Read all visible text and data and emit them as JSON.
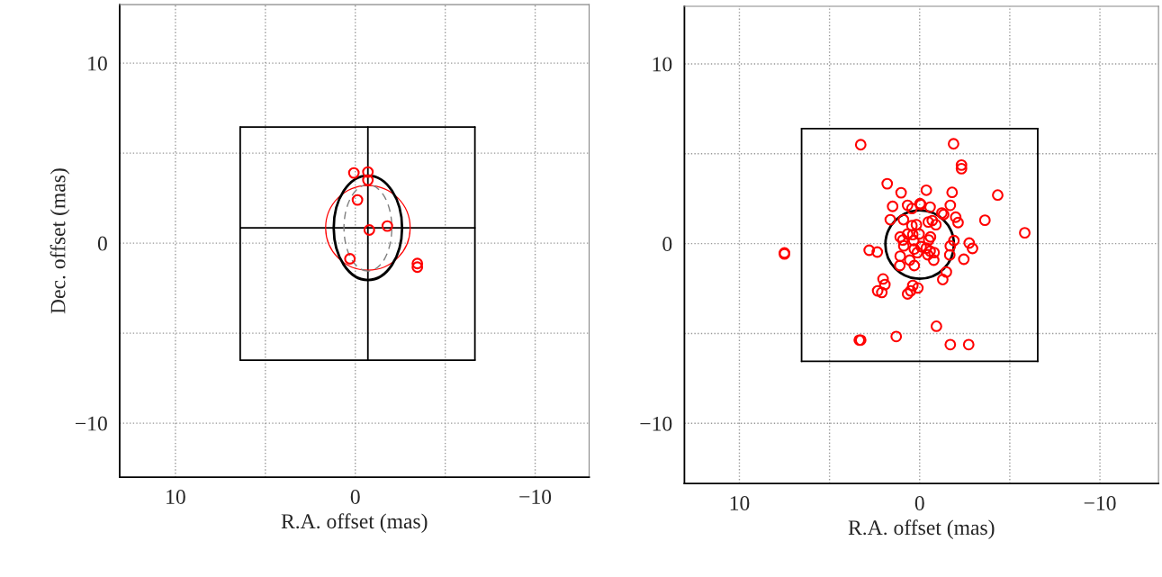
{
  "chart_data": [
    {
      "type": "scatter",
      "xlabel": "R.A. offset (mas)",
      "ylabel": "Dec. offset (mas)",
      "xlim": [
        13.1,
        -13
      ],
      "ylim": [
        -13,
        13.25
      ],
      "xticks": [
        10,
        {
          "value": 5,
          "label": null
        },
        0,
        {
          "value": -5,
          "label": null
        },
        {
          "value": -10,
          "label": "−10"
        }
      ],
      "yticks": [
        {
          "value": -10,
          "label": "−10"
        },
        {
          "value": -5,
          "label": null
        },
        0,
        {
          "value": 5,
          "label": null
        },
        10
      ],
      "grid": true,
      "series": [
        {
          "type": "line",
          "marker": "none",
          "color": "#000000",
          "line_style": "solid",
          "x": [
            6.4,
            -6.65
          ],
          "values": [
            6.45,
            6.45
          ]
        },
        {
          "type": "line",
          "marker": "none",
          "color": "#000000",
          "line_style": "solid",
          "x": [
            6.4,
            -6.65
          ],
          "values": [
            -6.5,
            -6.5
          ]
        },
        {
          "type": "line",
          "marker": "none",
          "color": "#000000",
          "line_style": "solid",
          "x": [
            6.4,
            6.4
          ],
          "values": [
            6.45,
            -6.5
          ]
        },
        {
          "type": "line",
          "marker": "none",
          "color": "#000000",
          "line_style": "solid",
          "x": [
            -6.65,
            -6.65
          ],
          "values": [
            6.45,
            -6.5
          ]
        },
        {
          "type": "line",
          "marker": "none",
          "color": "#000000",
          "line_style": "solid",
          "x": [
            6.4,
            -6.65
          ],
          "values": [
            0.85,
            0.85
          ]
        },
        {
          "type": "line",
          "marker": "none",
          "color": "#000000",
          "line_style": "solid",
          "x": [
            -0.7,
            -0.7
          ],
          "values": [
            6.45,
            -6.5
          ]
        },
        {
          "marker": "circle",
          "color": "#ff0000",
          "x": [
            0.08,
            -0.7,
            -0.7,
            -0.12,
            -1.78,
            -0.78,
            0.3,
            -3.45,
            -3.45
          ],
          "values": [
            3.9,
            3.95,
            3.5,
            2.4,
            0.95,
            0.73,
            -0.87,
            -1.13,
            -1.33
          ]
        }
      ]
    },
    {
      "type": "scatter",
      "xlabel": "R.A. offset (mas)",
      "xlim": [
        13.05,
        -13.25
      ],
      "ylim": [
        -13.35,
        13.2
      ],
      "xticks": [
        10,
        {
          "value": 5,
          "label": null
        },
        0,
        {
          "value": -5,
          "label": null
        },
        {
          "value": -10,
          "label": "−10"
        }
      ],
      "yticks": [
        {
          "value": -10,
          "label": "−10"
        },
        {
          "value": -5,
          "label": null
        },
        0,
        {
          "value": 5,
          "label": null
        },
        10
      ],
      "grid": true,
      "series": [
        {
          "type": "line",
          "marker": "none",
          "color": "#000000",
          "line_style": "solid",
          "x": [
            6.55,
            -6.55
          ],
          "values": [
            6.4,
            6.4
          ]
        },
        {
          "type": "line",
          "marker": "none",
          "color": "#000000",
          "line_style": "solid",
          "x": [
            6.55,
            -6.55
          ],
          "values": [
            -6.55,
            -6.55
          ]
        },
        {
          "type": "line",
          "marker": "none",
          "color": "#000000",
          "line_style": "solid",
          "x": [
            6.55,
            6.55
          ],
          "values": [
            6.4,
            -6.55
          ]
        },
        {
          "type": "line",
          "marker": "none",
          "color": "#000000",
          "line_style": "solid",
          "x": [
            -6.55,
            -6.55
          ],
          "values": [
            6.4,
            -6.55
          ]
        },
        {
          "marker": "circle",
          "color": "#ff0000",
          "x": [
            3.27,
            -1.88,
            -2.32,
            -2.32,
            1.8,
            1.03,
            -0.37,
            -1.8,
            -4.33,
            1.5,
            0.67,
            0.43,
            -0.02,
            -0.07,
            -0.58,
            -1.7,
            -1.23,
            -1.33,
            -2.0,
            -2.13,
            -3.62,
            1.63,
            0.9,
            -0.48,
            -0.7,
            -0.9,
            0.43,
            0.18,
            -5.83,
            1.08,
            0.93,
            0.67,
            0.38,
            0.33,
            0.03,
            0.88,
            0.3,
            -0.08,
            -0.6,
            -0.5,
            -0.37,
            -1.9,
            -1.7,
            -2.75,
            -2.93,
            2.8,
            2.35,
            1.08,
            1.1,
            0.55,
            0.3,
            0.13,
            -0.45,
            -0.58,
            -0.8,
            -0.78,
            -1.67,
            -2.45,
            -1.48,
            -1.28,
            2.03,
            1.93,
            2.33,
            2.1,
            0.38,
            0.5,
            0.67,
            0.1,
            7.5,
            7.5,
            -0.93,
            1.3,
            3.35,
            3.27,
            -1.7,
            -2.72
          ],
          "values": [
            5.5,
            5.55,
            4.37,
            4.17,
            3.33,
            2.83,
            2.97,
            2.85,
            2.7,
            2.07,
            2.13,
            1.95,
            2.22,
            2.17,
            2.03,
            2.13,
            1.7,
            1.62,
            1.47,
            1.17,
            1.3,
            1.33,
            1.33,
            1.2,
            1.28,
            1.05,
            1.0,
            1.05,
            0.6,
            0.37,
            0.2,
            0.53,
            0.5,
            0.17,
            0.53,
            -0.13,
            -0.3,
            -0.17,
            0.37,
            0.2,
            -0.25,
            0.17,
            -0.13,
            0.03,
            -0.27,
            -0.37,
            -0.47,
            -0.7,
            -1.22,
            -0.92,
            -1.22,
            -0.5,
            -0.62,
            -0.42,
            -0.5,
            -0.92,
            -0.63,
            -0.87,
            -1.58,
            -2.0,
            -1.97,
            -2.28,
            -2.63,
            -2.72,
            -2.33,
            -2.63,
            -2.8,
            -2.47,
            -0.52,
            -0.58,
            -4.6,
            -5.17,
            -5.37,
            -5.37,
            -5.62,
            -5.62
          ]
        }
      ]
    }
  ]
}
